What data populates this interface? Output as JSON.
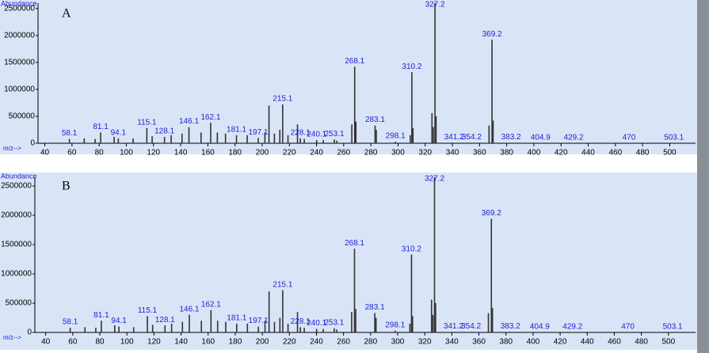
{
  "chart_data": [
    {
      "type": "bar",
      "title": "A",
      "ylabel": "Abundance",
      "xlabel": "m/z-->",
      "xlim": [
        35,
        519
      ],
      "xticks": [
        40,
        60,
        80,
        100,
        120,
        140,
        160,
        180,
        200,
        220,
        240,
        260,
        280,
        300,
        320,
        340,
        360,
        380,
        400,
        420,
        440,
        460,
        480,
        500
      ],
      "ylim": [
        0,
        2600000
      ],
      "yticks": [
        0,
        500000,
        1000000,
        1500000,
        2000000,
        2500000
      ],
      "color": "#333333",
      "label_color": "#1f1fd0",
      "peaks": {
        "x": [
          58.1,
          81.1,
          94.1,
          115.1,
          128.1,
          146.1,
          162.1,
          181.1,
          197.1,
          215.1,
          228.1,
          240.1,
          253.1,
          268.1,
          283.1,
          298.1,
          310.2,
          327.2,
          341.2,
          354.2,
          369.2,
          383.2,
          404.9,
          429.2,
          470.0,
          503.1
        ],
        "values": [
          80000,
          200000,
          90000,
          280000,
          120000,
          300000,
          380000,
          150000,
          100000,
          720000,
          90000,
          60000,
          70000,
          1420000,
          330000,
          30000,
          1320000,
          2600000,
          10000,
          10000,
          1920000,
          10000,
          5000,
          5000,
          3000,
          3000
        ]
      },
      "minor_peaks": {
        "x": [
          69,
          77,
          91,
          105,
          119,
          133,
          141,
          155,
          167,
          173,
          189,
          202,
          205,
          209,
          213,
          219,
          226,
          231,
          245,
          255,
          266,
          269,
          284,
          309,
          311,
          325,
          326,
          328,
          367,
          370
        ],
        "values": [
          90000,
          80000,
          120000,
          90000,
          130000,
          150000,
          180000,
          200000,
          200000,
          180000,
          150000,
          200000,
          700000,
          180000,
          250000,
          150000,
          350000,
          80000,
          60000,
          50000,
          350000,
          400000,
          250000,
          150000,
          280000,
          560000,
          300000,
          500000,
          330000,
          420000
        ]
      }
    },
    {
      "type": "bar",
      "title": "B",
      "ylabel": "Abundance",
      "xlabel": "m/z-->",
      "xlim": [
        32,
        520
      ],
      "xticks": [
        40,
        60,
        80,
        100,
        120,
        140,
        160,
        180,
        200,
        220,
        240,
        260,
        280,
        300,
        320,
        340,
        360,
        380,
        400,
        420,
        440,
        460,
        480,
        500
      ],
      "ylim": [
        0,
        2650000
      ],
      "yticks": [
        0,
        500000,
        1000000,
        1500000,
        2000000,
        2500000
      ],
      "color": "#333333",
      "label_color": "#1f1fd0",
      "peaks": {
        "x": [
          58.1,
          81.1,
          94.1,
          115.1,
          128.1,
          146.1,
          162.1,
          181.1,
          197.1,
          215.1,
          228.1,
          240.1,
          253.1,
          268.1,
          283.1,
          298.1,
          310.2,
          327.2,
          341.2,
          354.2,
          369.2,
          383.2,
          404.9,
          429.2,
          470.0,
          503.1
        ],
        "values": [
          80000,
          200000,
          100000,
          280000,
          120000,
          300000,
          380000,
          150000,
          100000,
          720000,
          90000,
          60000,
          70000,
          1430000,
          330000,
          30000,
          1330000,
          2650000,
          10000,
          10000,
          1940000,
          10000,
          5000,
          5000,
          3000,
          3000
        ]
      },
      "minor_peaks": {
        "x": [
          69,
          77,
          91,
          105,
          119,
          133,
          141,
          155,
          167,
          173,
          189,
          202,
          205,
          209,
          213,
          219,
          226,
          231,
          245,
          255,
          266,
          269,
          284,
          309,
          311,
          325,
          326,
          328,
          367,
          370
        ],
        "values": [
          90000,
          80000,
          120000,
          90000,
          130000,
          150000,
          180000,
          200000,
          200000,
          180000,
          150000,
          200000,
          700000,
          180000,
          250000,
          150000,
          350000,
          80000,
          60000,
          50000,
          350000,
          400000,
          250000,
          150000,
          280000,
          560000,
          300000,
          500000,
          330000,
          420000
        ]
      }
    }
  ]
}
